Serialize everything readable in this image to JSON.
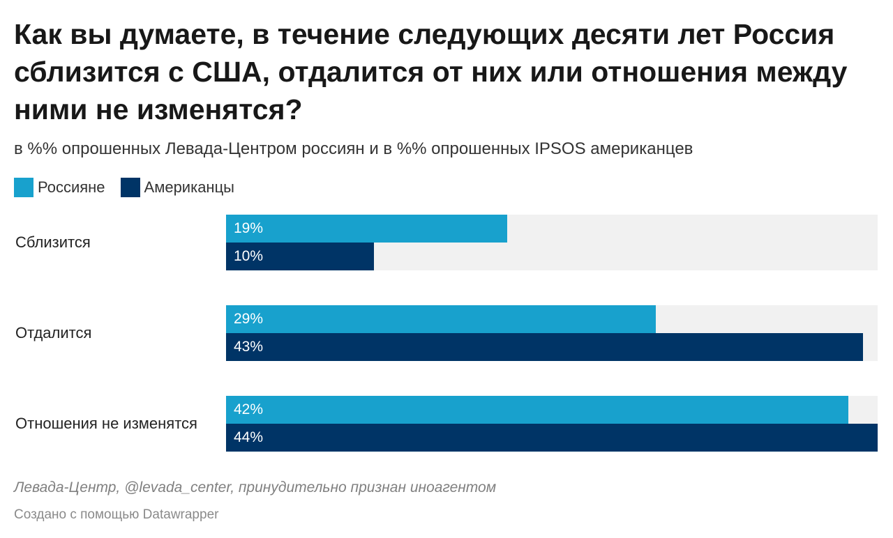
{
  "chart_data": {
    "type": "bar",
    "orientation": "horizontal",
    "title": "Как вы думаете, в течение следующих десяти лет Россия сблизится с США, отдалится от них или отношения между ними не изменятся?",
    "subtitle": "в %% опрошенных Левада-Центром россиян и в %% опрошенных IPSOS американцев",
    "categories": [
      "Сблизится",
      "Отдалится",
      "Отношения не изменятся"
    ],
    "series": [
      {
        "name": "Россияне",
        "color": "#18a1cd",
        "values": [
          19,
          29,
          42
        ],
        "labels": [
          "19%",
          "29%",
          "42%"
        ]
      },
      {
        "name": "Американцы",
        "color": "#003466",
        "values": [
          10,
          43,
          44
        ],
        "labels": [
          "10%",
          "43%",
          "44%"
        ]
      }
    ],
    "xlim": [
      0,
      44
    ],
    "grid": false,
    "legend_position": "top-left",
    "background_bar_color": "#f1f1f1"
  },
  "footer": {
    "source": "Левада-Центр, @levada_center, принудительно признан иноагентом",
    "credit": "Создано с помощью Datawrapper"
  }
}
